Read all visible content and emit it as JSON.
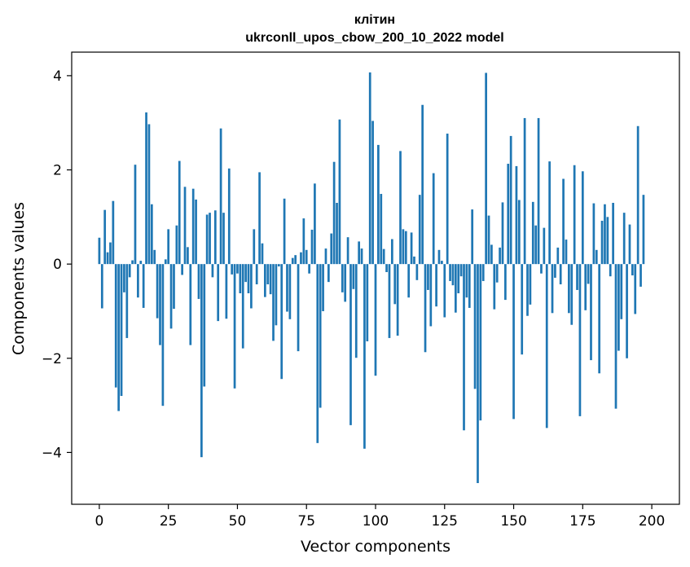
{
  "chart_data": {
    "type": "bar",
    "title_line1": "клітин",
    "title_line2": "ukrconll_upos_cbow_200_10_2022 model",
    "xlabel": "Vector components",
    "ylabel": "Components values",
    "xlim": [
      -10,
      210
    ],
    "ylim": [
      -5.1,
      4.5
    ],
    "xticks": [
      0,
      25,
      50,
      75,
      100,
      125,
      150,
      175,
      200
    ],
    "xtick_labels": [
      "0",
      "25",
      "50",
      "75",
      "100",
      "125",
      "150",
      "175",
      "200"
    ],
    "yticks": [
      4,
      2,
      0,
      -2,
      -4
    ],
    "ytick_labels": [
      "4",
      "2",
      "0",
      "−2",
      "−4"
    ],
    "bar_color": "#1f77b4",
    "grid": false,
    "values": [
      0.56,
      -0.94,
      1.15,
      0.25,
      0.46,
      1.34,
      -2.62,
      -3.12,
      -2.8,
      -0.6,
      -1.57,
      -0.28,
      0.08,
      2.11,
      -0.71,
      0.07,
      -0.93,
      3.22,
      2.97,
      1.27,
      0.3,
      -1.15,
      -1.72,
      -3.01,
      0.1,
      0.74,
      -1.37,
      -0.95,
      0.82,
      2.19,
      -0.23,
      1.64,
      0.36,
      -1.72,
      1.6,
      1.37,
      -0.74,
      -4.1,
      -2.6,
      1.05,
      1.09,
      -0.28,
      1.14,
      -1.21,
      2.88,
      1.09,
      -1.16,
      2.03,
      -0.22,
      -2.64,
      -0.2,
      -0.62,
      -1.79,
      -0.38,
      -0.62,
      -0.94,
      0.74,
      -0.43,
      1.95,
      0.44,
      -0.7,
      -0.43,
      -0.64,
      -1.63,
      -1.3,
      -0.05,
      -2.44,
      1.39,
      -1.01,
      -1.17,
      0.13,
      0.19,
      -1.85,
      0.25,
      0.97,
      0.3,
      -0.2,
      0.73,
      1.71,
      -3.8,
      -3.05,
      -1.0,
      0.33,
      -0.38,
      0.65,
      2.17,
      1.3,
      3.07,
      -0.6,
      -0.8,
      0.57,
      -3.42,
      -0.53,
      -1.99,
      0.48,
      0.33,
      -3.92,
      -1.64,
      4.07,
      3.04,
      -2.37,
      2.53,
      1.49,
      0.32,
      -0.17,
      -1.57,
      0.53,
      -0.85,
      -1.52,
      2.4,
      0.74,
      0.7,
      -0.71,
      0.67,
      0.16,
      -0.34,
      1.47,
      3.38,
      -1.87,
      -0.55,
      -1.32,
      1.93,
      -0.9,
      0.3,
      0.07,
      -1.13,
      2.77,
      -0.36,
      -0.45,
      -1.03,
      -0.62,
      -0.26,
      -3.53,
      -0.71,
      -0.93,
      1.16,
      -2.65,
      -4.65,
      -3.32,
      -0.36,
      4.06,
      1.03,
      0.41,
      -0.96,
      -0.39,
      0.35,
      1.31,
      -0.76,
      2.13,
      2.72,
      -3.29,
      2.08,
      1.36,
      -1.92,
      3.1,
      -1.1,
      -0.86,
      1.32,
      0.82,
      3.1,
      -0.2,
      0.77,
      -3.48,
      2.18,
      -1.04,
      -0.29,
      0.35,
      -0.43,
      1.81,
      0.52,
      -1.04,
      -1.29,
      2.1,
      -0.55,
      -3.23,
      1.97,
      -0.98,
      -0.42,
      -2.04,
      1.29,
      0.3,
      -2.32,
      0.92,
      1.27,
      1.0,
      -0.26,
      1.3,
      -3.07,
      -1.84,
      -1.17,
      1.09,
      -2.0,
      0.84,
      -0.24,
      -1.06,
      2.93,
      -0.48,
      1.47
    ]
  }
}
